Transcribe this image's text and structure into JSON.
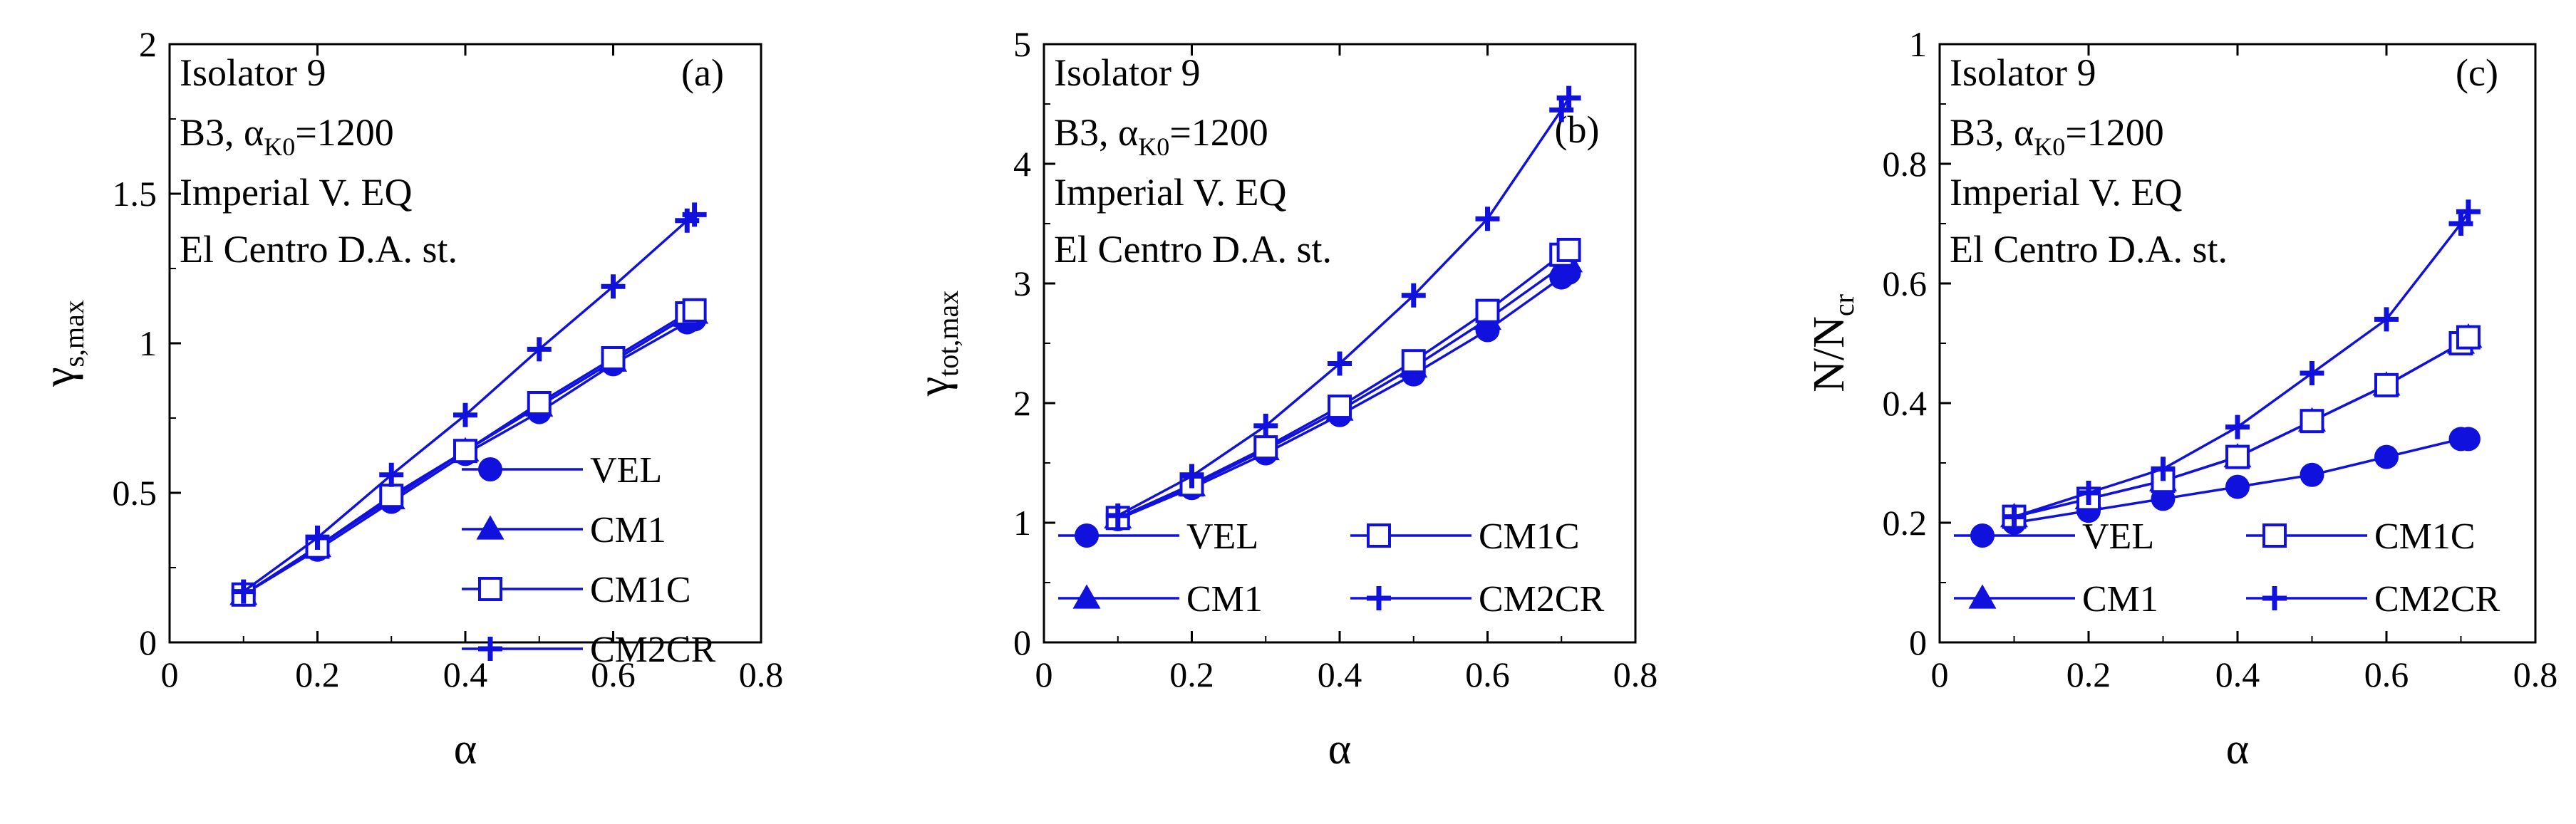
{
  "series_color": "#1111dd",
  "chart_data": [
    {
      "type": "line",
      "panel": "(a)",
      "xlabel": "α",
      "ylabel": "γ",
      "ylabel_sub": "s,max",
      "xlim": [
        0,
        0.8
      ],
      "ylim": [
        0,
        2
      ],
      "xticks": [
        0,
        0.2,
        0.4,
        0.6,
        0.8
      ],
      "xtick_labels": [
        "0",
        "0.2",
        "0.4",
        "0.6",
        "0.8"
      ],
      "yticks": [
        0,
        0.5,
        1,
        1.5,
        2
      ],
      "ytick_labels": [
        "0",
        "0.5",
        "1",
        "1.5",
        "2"
      ],
      "annotation": {
        "line1": "Isolator 9",
        "line2_pre": "B3, α",
        "line2_sub": "K0",
        "line2_post": "=1200",
        "line3": "Imperial V. EQ",
        "line4": "El Centro D.A. st."
      },
      "legend": {
        "layout": "single-column",
        "placement": "bottom-right"
      },
      "x": [
        0.1,
        0.2,
        0.3,
        0.4,
        0.5,
        0.6,
        0.7,
        0.71
      ],
      "series": [
        {
          "name": "VEL",
          "marker": "filled-circle",
          "values": [
            0.16,
            0.31,
            0.47,
            0.63,
            0.77,
            0.93,
            1.07,
            1.08
          ]
        },
        {
          "name": "CM1",
          "marker": "filled-triangle",
          "values": [
            0.16,
            0.32,
            0.48,
            0.64,
            0.79,
            0.94,
            1.09,
            1.1
          ]
        },
        {
          "name": "CM1C",
          "marker": "open-square",
          "values": [
            0.16,
            0.32,
            0.49,
            0.64,
            0.8,
            0.95,
            1.1,
            1.11
          ]
        },
        {
          "name": "CM2CR",
          "marker": "plus",
          "values": [
            0.17,
            0.35,
            0.56,
            0.76,
            0.98,
            1.19,
            1.41,
            1.43
          ]
        }
      ]
    },
    {
      "type": "line",
      "panel": "(b)",
      "xlabel": "α",
      "ylabel": "γ",
      "ylabel_sub": "tot,max",
      "xlim": [
        0,
        0.8
      ],
      "ylim": [
        0,
        5
      ],
      "xticks": [
        0,
        0.2,
        0.4,
        0.6,
        0.8
      ],
      "xtick_labels": [
        "0",
        "0.2",
        "0.4",
        "0.6",
        "0.8"
      ],
      "yticks": [
        0,
        1,
        2,
        3,
        4,
        5
      ],
      "ytick_labels": [
        "0",
        "1",
        "2",
        "3",
        "4",
        "5"
      ],
      "annotation": {
        "line1": "Isolator 9",
        "line2_pre": "B3, α",
        "line2_sub": "K0",
        "line2_post": "=1200",
        "line3": "Imperial V. EQ",
        "line4": "El Centro D.A. st."
      },
      "legend": {
        "layout": "two-column",
        "placement": "bottom"
      },
      "x": [
        0.1,
        0.2,
        0.3,
        0.4,
        0.5,
        0.6,
        0.7,
        0.71
      ],
      "series": [
        {
          "name": "VEL",
          "marker": "filled-circle",
          "values": [
            1.03,
            1.29,
            1.58,
            1.9,
            2.24,
            2.61,
            3.05,
            3.09
          ]
        },
        {
          "name": "CM1",
          "marker": "filled-triangle",
          "values": [
            1.04,
            1.31,
            1.61,
            1.94,
            2.3,
            2.7,
            3.14,
            3.18
          ]
        },
        {
          "name": "CM1C",
          "marker": "open-square",
          "values": [
            1.04,
            1.32,
            1.63,
            1.97,
            2.35,
            2.77,
            3.24,
            3.28
          ]
        },
        {
          "name": "CM2CR",
          "marker": "plus",
          "values": [
            1.06,
            1.39,
            1.81,
            2.33,
            2.9,
            3.54,
            4.45,
            4.55
          ]
        }
      ]
    },
    {
      "type": "line",
      "panel": "(c)",
      "xlabel": "α",
      "ylabel": "N/N",
      "ylabel_sub": "cr",
      "xlim": [
        0,
        0.8
      ],
      "ylim": [
        0,
        1
      ],
      "xticks": [
        0,
        0.2,
        0.4,
        0.6,
        0.8
      ],
      "xtick_labels": [
        "0",
        "0.2",
        "0.4",
        "0.6",
        "0.8"
      ],
      "yticks": [
        0,
        0.2,
        0.4,
        0.6,
        0.8,
        1
      ],
      "ytick_labels": [
        "0",
        "0.2",
        "0.4",
        "0.6",
        "0.8",
        "1"
      ],
      "annotation": {
        "line1": "Isolator 9",
        "line2_pre": "B3, α",
        "line2_sub": "K0",
        "line2_post": "=1200",
        "line3": "Imperial V. EQ",
        "line4": "El Centro D.A. st."
      },
      "legend": {
        "layout": "two-column",
        "placement": "bottom"
      },
      "x": [
        0.1,
        0.2,
        0.3,
        0.4,
        0.5,
        0.6,
        0.7,
        0.71
      ],
      "series": [
        {
          "name": "VEL",
          "marker": "filled-circle",
          "values": [
            0.2,
            0.22,
            0.24,
            0.26,
            0.28,
            0.31,
            0.34,
            0.34
          ]
        },
        {
          "name": "CM1",
          "marker": "filled-triangle",
          "values": [
            0.21,
            0.24,
            0.27,
            0.31,
            0.37,
            0.43,
            0.5,
            0.51
          ]
        },
        {
          "name": "CM1C",
          "marker": "open-square",
          "values": [
            0.21,
            0.24,
            0.27,
            0.31,
            0.37,
            0.43,
            0.5,
            0.51
          ]
        },
        {
          "name": "CM2CR",
          "marker": "plus",
          "values": [
            0.21,
            0.25,
            0.29,
            0.36,
            0.45,
            0.54,
            0.7,
            0.72
          ]
        }
      ]
    }
  ]
}
